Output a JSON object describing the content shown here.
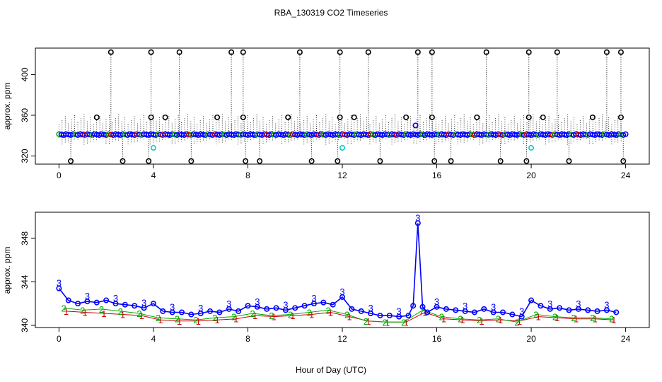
{
  "figure": {
    "title": "RBA_130319  CO2 Timeseries",
    "xlabel": "Hour of Day (UTC)"
  },
  "chart_data": [
    {
      "type": "scatter",
      "title": "",
      "xlabel": "",
      "ylabel": "approx. ppm",
      "xlim": [
        -1,
        25
      ],
      "ylim": [
        312,
        426
      ],
      "xticks": [
        0,
        4,
        8,
        12,
        16,
        20,
        24
      ],
      "yticks": [
        320,
        360,
        400
      ],
      "baseline": 341,
      "upper_spikes_x": [
        2.2,
        3.9,
        5.1,
        7.3,
        7.8,
        10.2,
        11.9,
        13.1,
        15.2,
        15.8,
        18.1,
        19.9,
        21.1,
        23.2,
        23.8
      ],
      "upper_spike_value": 422,
      "lower_spikes_x": [
        0.5,
        2.7,
        3.8,
        5.6,
        7.9,
        8.5,
        10.7,
        11.8,
        13.6,
        15.9,
        16.6,
        18.7,
        19.8,
        21.6,
        23.9
      ],
      "lower_spike_value": 315,
      "mid_outliers": [
        {
          "x": 1.6,
          "y": 358
        },
        {
          "x": 3.9,
          "y": 358
        },
        {
          "x": 4.5,
          "y": 358
        },
        {
          "x": 6.7,
          "y": 358
        },
        {
          "x": 7.8,
          "y": 358
        },
        {
          "x": 9.7,
          "y": 358
        },
        {
          "x": 11.9,
          "y": 358
        },
        {
          "x": 12.5,
          "y": 358
        },
        {
          "x": 14.7,
          "y": 358
        },
        {
          "x": 15.1,
          "y": 350
        },
        {
          "x": 15.8,
          "y": 358
        },
        {
          "x": 17.7,
          "y": 358
        },
        {
          "x": 19.9,
          "y": 358
        },
        {
          "x": 20.5,
          "y": 358
        },
        {
          "x": 22.6,
          "y": 358
        },
        {
          "x": 23.8,
          "y": 358
        }
      ],
      "cyan_points": [
        {
          "x": 4.0,
          "y": 328
        },
        {
          "x": 12.0,
          "y": 328
        },
        {
          "x": 20.0,
          "y": 328
        }
      ],
      "colors": {
        "baseline": "#0000ff",
        "spikes": "#000000",
        "cyan": "#00cccc",
        "green": "#00aa00",
        "red": "#cc0000"
      }
    },
    {
      "type": "line",
      "title": "",
      "xlabel": "",
      "ylabel": "approx. ppm",
      "xlim": [
        -1,
        25
      ],
      "ylim": [
        339.8,
        350.4
      ],
      "xticks": [
        0,
        4,
        8,
        12,
        16,
        20,
        24
      ],
      "yticks": [
        340,
        344,
        348
      ],
      "series": [
        {
          "name": "3",
          "color": "#0000ff",
          "marker": "3",
          "x": [
            0.0,
            0.4,
            0.8,
            1.2,
            1.6,
            2.0,
            2.4,
            2.8,
            3.2,
            3.6,
            4.0,
            4.4,
            4.8,
            5.2,
            5.6,
            6.0,
            6.4,
            6.8,
            7.2,
            7.6,
            8.0,
            8.4,
            8.8,
            9.2,
            9.6,
            10.0,
            10.4,
            10.8,
            11.2,
            11.6,
            12.0,
            12.4,
            12.8,
            13.2,
            13.6,
            14.0,
            14.4,
            14.8,
            15.0,
            15.2,
            15.4,
            15.6,
            16.0,
            16.4,
            16.8,
            17.2,
            17.6,
            18.0,
            18.4,
            18.8,
            19.2,
            19.6,
            20.0,
            20.4,
            20.8,
            21.2,
            21.6,
            22.0,
            22.4,
            22.8,
            23.2,
            23.6
          ],
          "values": [
            343.4,
            342.3,
            342.0,
            342.2,
            342.1,
            342.3,
            342.0,
            341.9,
            341.8,
            341.6,
            342.0,
            341.3,
            341.2,
            341.2,
            341.0,
            341.1,
            341.3,
            341.2,
            341.5,
            341.3,
            341.8,
            341.7,
            341.5,
            341.6,
            341.4,
            341.6,
            341.8,
            342.0,
            342.1,
            341.9,
            342.6,
            341.5,
            341.3,
            341.1,
            340.9,
            340.9,
            340.8,
            340.9,
            341.8,
            349.4,
            341.7,
            341.2,
            341.7,
            341.5,
            341.4,
            341.3,
            341.2,
            341.5,
            341.2,
            341.2,
            341.0,
            340.8,
            342.3,
            341.8,
            341.5,
            341.6,
            341.4,
            341.5,
            341.4,
            341.3,
            341.4,
            341.2
          ]
        },
        {
          "name": "2",
          "color": "#00aa00",
          "marker": "2",
          "x": [
            0.2,
            1.0,
            1.8,
            2.6,
            3.4,
            4.2,
            5.0,
            5.8,
            6.6,
            7.4,
            8.2,
            9.0,
            9.8,
            10.6,
            11.4,
            12.2,
            13.0,
            13.8,
            14.6,
            15.4,
            16.2,
            17.0,
            17.8,
            18.6,
            19.4,
            20.2,
            21.0,
            21.8,
            22.6,
            23.4
          ],
          "values": [
            341.6,
            341.4,
            341.5,
            341.3,
            341.1,
            340.7,
            340.6,
            340.5,
            340.7,
            340.8,
            341.1,
            340.9,
            341.0,
            341.2,
            341.4,
            341.0,
            340.4,
            340.3,
            340.3,
            341.4,
            340.8,
            340.6,
            340.5,
            340.6,
            340.3,
            341.0,
            340.8,
            340.7,
            340.7,
            340.6
          ]
        },
        {
          "name": "1",
          "color": "#cc0000",
          "marker": "1",
          "x": [
            0.3,
            1.1,
            1.9,
            2.7,
            3.5,
            4.3,
            5.1,
            5.9,
            6.7,
            7.5,
            8.3,
            9.1,
            9.9,
            10.7,
            11.5,
            12.3,
            13.1,
            13.9,
            14.7,
            15.5,
            16.3,
            17.1,
            17.9,
            18.7,
            19.5,
            20.3,
            21.1,
            21.9,
            22.7,
            23.5
          ],
          "values": [
            341.3,
            341.2,
            341.1,
            341.0,
            340.9,
            340.5,
            340.4,
            340.4,
            340.5,
            340.6,
            340.9,
            340.8,
            340.9,
            341.0,
            341.2,
            340.8,
            340.4,
            340.3,
            340.3,
            341.2,
            340.6,
            340.5,
            340.4,
            340.5,
            340.4,
            340.8,
            340.7,
            340.6,
            340.6,
            340.5
          ]
        }
      ]
    }
  ]
}
